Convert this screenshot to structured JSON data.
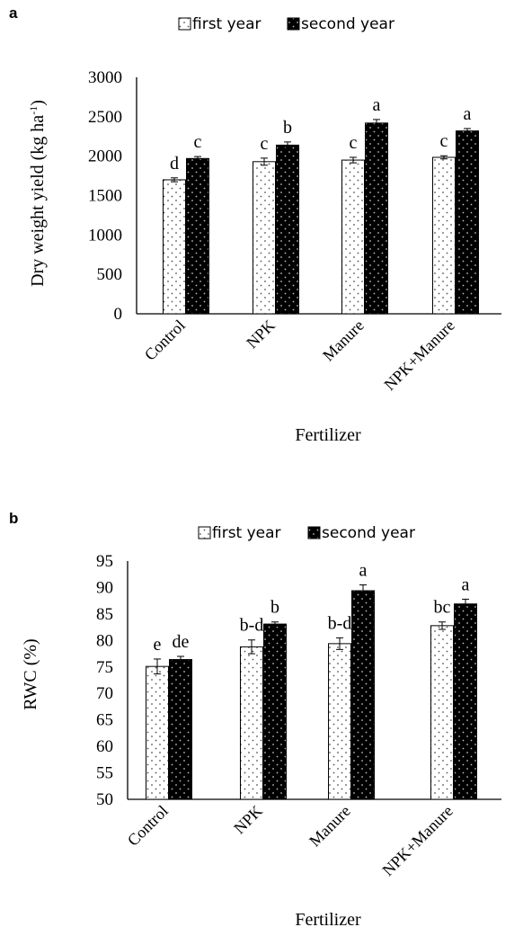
{
  "chart_data": [
    {
      "panel": "a",
      "type": "bar",
      "categories": [
        "Control",
        "NPK",
        "Manure",
        "NPK+Manure"
      ],
      "series": [
        {
          "name": "first year",
          "values": [
            1700,
            1930,
            1950,
            1985
          ],
          "errors": [
            25,
            45,
            35,
            20
          ],
          "letters": [
            "d",
            "c",
            "c",
            "c"
          ],
          "color": "#ffffff"
        },
        {
          "name": "second year",
          "values": [
            1970,
            2140,
            2420,
            2320
          ],
          "errors": [
            25,
            40,
            45,
            30
          ],
          "letters": [
            "c",
            "b",
            "a",
            "a"
          ],
          "color": "#000000"
        }
      ],
      "ylim": [
        0,
        3000
      ],
      "yticks": [
        0,
        500,
        1000,
        1500,
        2000,
        2500,
        3000
      ],
      "ylabel_main": "Dry weight yield (kg ha",
      "ylabel_sup": "-1",
      "ylabel_end": ")",
      "xlabel": "Fertilizer",
      "legend_position": "top"
    },
    {
      "panel": "b",
      "type": "bar",
      "categories": [
        "Control",
        "NPK",
        "Manure",
        "NPK+Manure"
      ],
      "series": [
        {
          "name": "first year",
          "values": [
            75.1,
            78.8,
            79.4,
            82.8
          ],
          "errors": [
            1.4,
            1.3,
            1.1,
            0.7
          ],
          "letters": [
            "e",
            "b-d",
            "b-d",
            "bc"
          ],
          "color": "#ffffff"
        },
        {
          "name": "second year",
          "values": [
            76.4,
            83.1,
            89.4,
            86.9
          ],
          "errors": [
            0.6,
            0.4,
            1.1,
            0.9
          ],
          "letters": [
            "de",
            "b",
            "a",
            "a"
          ],
          "color": "#000000"
        }
      ],
      "ylim": [
        50,
        95
      ],
      "yticks": [
        50,
        55,
        60,
        65,
        70,
        75,
        80,
        85,
        90,
        95
      ],
      "ylabel_main": "RWC (%)",
      "ylabel_sup": "",
      "ylabel_end": "",
      "xlabel": "Fertilizer",
      "legend_position": "top"
    }
  ]
}
